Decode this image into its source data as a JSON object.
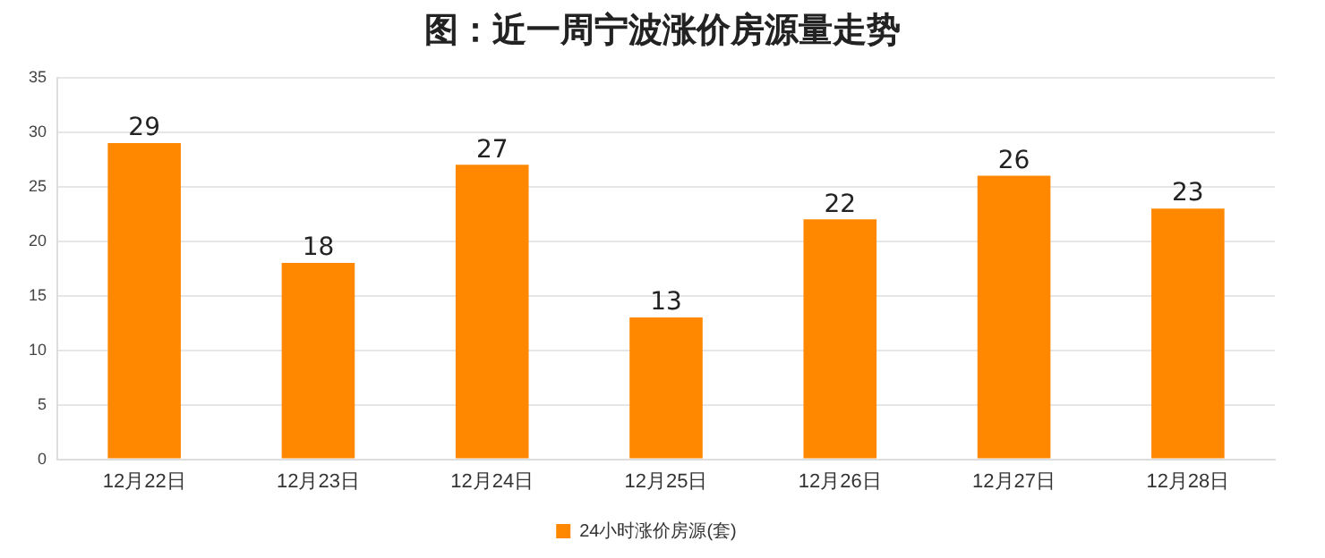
{
  "chart_data": {
    "type": "bar",
    "title": "图：近一周宁波涨价房源量走势",
    "categories": [
      "12月22日",
      "12月23日",
      "12月24日",
      "12月25日",
      "12月26日",
      "12月27日",
      "12月28日"
    ],
    "series": [
      {
        "name": "24小时涨价房源(套)",
        "color": "#ff8800",
        "values": [
          29,
          18,
          27,
          13,
          22,
          26,
          23
        ]
      }
    ],
    "ylim": [
      0,
      35
    ],
    "yticks": [
      0,
      5,
      10,
      15,
      20,
      25,
      30,
      35
    ],
    "grid": "y",
    "legend": "bottom",
    "data_labels": true
  }
}
